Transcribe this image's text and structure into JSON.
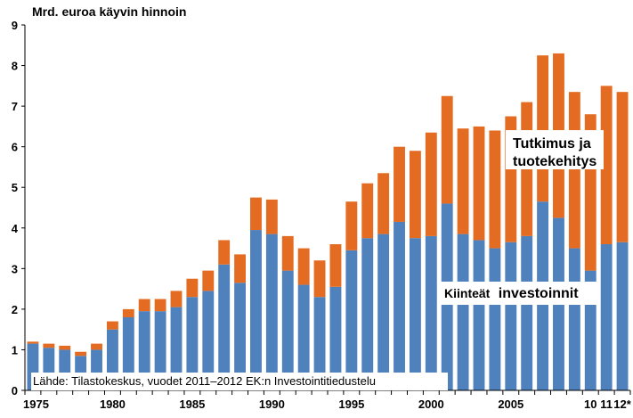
{
  "chart_data": {
    "type": "bar",
    "stacked": true,
    "ylabel": "Mrd. euroa käyvin hinnoin",
    "ylim": [
      0,
      9
    ],
    "yticks": [
      "0",
      "1",
      "2",
      "3",
      "4",
      "5",
      "6",
      "7",
      "8",
      "9"
    ],
    "grid": false,
    "categories": [
      1975,
      1976,
      1977,
      1978,
      1979,
      1980,
      1981,
      1982,
      1983,
      1984,
      1985,
      1986,
      1987,
      1988,
      1989,
      1990,
      1991,
      1992,
      1993,
      1994,
      1995,
      1996,
      1997,
      1998,
      1999,
      2000,
      2001,
      2002,
      2003,
      2004,
      2005,
      2006,
      2007,
      2008,
      2009,
      2010,
      2011,
      2012
    ],
    "xtick_labels": [
      {
        "label": "1975",
        "index": 0
      },
      {
        "label": "1980",
        "index": 5
      },
      {
        "label": "1985",
        "index": 10
      },
      {
        "label": "1990",
        "index": 15
      },
      {
        "label": "1995",
        "index": 20
      },
      {
        "label": "2000",
        "index": 25
      },
      {
        "label": "2005",
        "index": 30
      },
      {
        "label": "10",
        "index": 35
      },
      {
        "label": "11",
        "index": 36
      },
      {
        "label": "12*",
        "index": 37
      }
    ],
    "series": [
      {
        "label": "Kiinteät investoinnit",
        "color": "#4f81bd",
        "values": [
          1.15,
          1.05,
          1.0,
          0.85,
          1.0,
          1.5,
          1.8,
          1.95,
          1.95,
          2.05,
          2.3,
          2.45,
          3.1,
          2.65,
          3.95,
          3.85,
          2.95,
          2.6,
          2.3,
          2.55,
          3.45,
          3.75,
          3.85,
          4.15,
          3.75,
          3.8,
          4.6,
          3.85,
          3.7,
          3.5,
          3.65,
          3.8,
          4.65,
          4.25,
          3.5,
          2.95,
          3.6,
          3.65
        ]
      },
      {
        "label": "Tutkimus ja tuotekehitys",
        "color": "#e46c22",
        "values": [
          0.05,
          0.1,
          0.1,
          0.1,
          0.15,
          0.2,
          0.2,
          0.3,
          0.3,
          0.4,
          0.45,
          0.5,
          0.6,
          0.7,
          0.8,
          0.85,
          0.85,
          0.9,
          0.9,
          1.05,
          1.2,
          1.35,
          1.5,
          1.85,
          2.15,
          2.55,
          2.65,
          2.6,
          2.8,
          2.9,
          3.1,
          3.3,
          3.6,
          4.05,
          3.85,
          3.85,
          3.9,
          3.7
        ]
      }
    ],
    "annotations": {
      "rd_line1": "Tutkimus ja",
      "rd_line2": "tuotekehitys",
      "fixed_prefix": "Kiinteät",
      "fixed_suffix": "investoinnit",
      "source": "Lähde: Tilastokeskus, vuodet 2011–2012 EK:n Investointitiedustelu"
    }
  }
}
